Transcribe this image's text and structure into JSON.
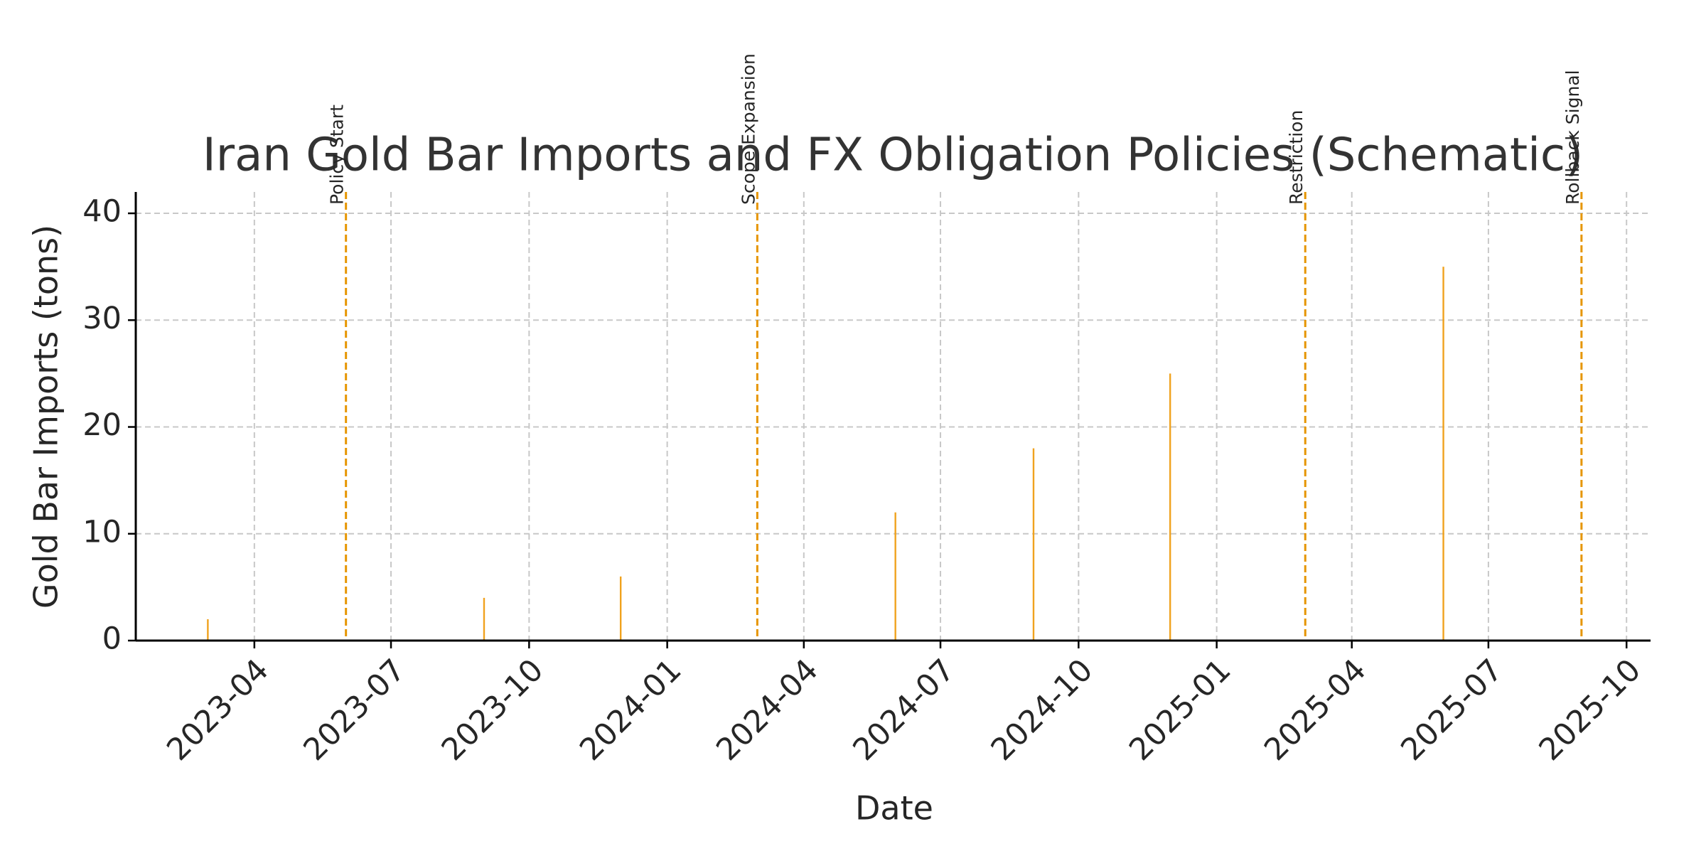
{
  "chart_data": {
    "type": "bar",
    "title": "Iran Gold Bar Imports and FX Obligation Policies (Schematic)",
    "xlabel": "Date",
    "ylabel": "Gold Bar Imports (tons)",
    "x": [
      "2023-03",
      "2023-09",
      "2023-12",
      "2024-06",
      "2024-09",
      "2024-12",
      "2025-06"
    ],
    "values": [
      2,
      4,
      6,
      12,
      18,
      25,
      35
    ],
    "color": "#f0a21e",
    "events": [
      {
        "x": "2023-06",
        "label": "Policy Start"
      },
      {
        "x": "2024-03",
        "label": "Scope Expansion"
      },
      {
        "x": "2025-03",
        "label": "Restriction"
      },
      {
        "x": "2025-09",
        "label": "Rollback Signal"
      }
    ],
    "event_color": "#e69500",
    "xlim": [
      "2023-01-12",
      "2025-10-17"
    ],
    "xticks": [
      "2023-04",
      "2023-07",
      "2023-10",
      "2024-01",
      "2024-04",
      "2024-07",
      "2024-10",
      "2025-01",
      "2025-04",
      "2025-07",
      "2025-10"
    ],
    "ylim": [
      0,
      42
    ],
    "yticks": [
      0,
      10,
      20,
      30,
      40
    ],
    "grid": true
  }
}
